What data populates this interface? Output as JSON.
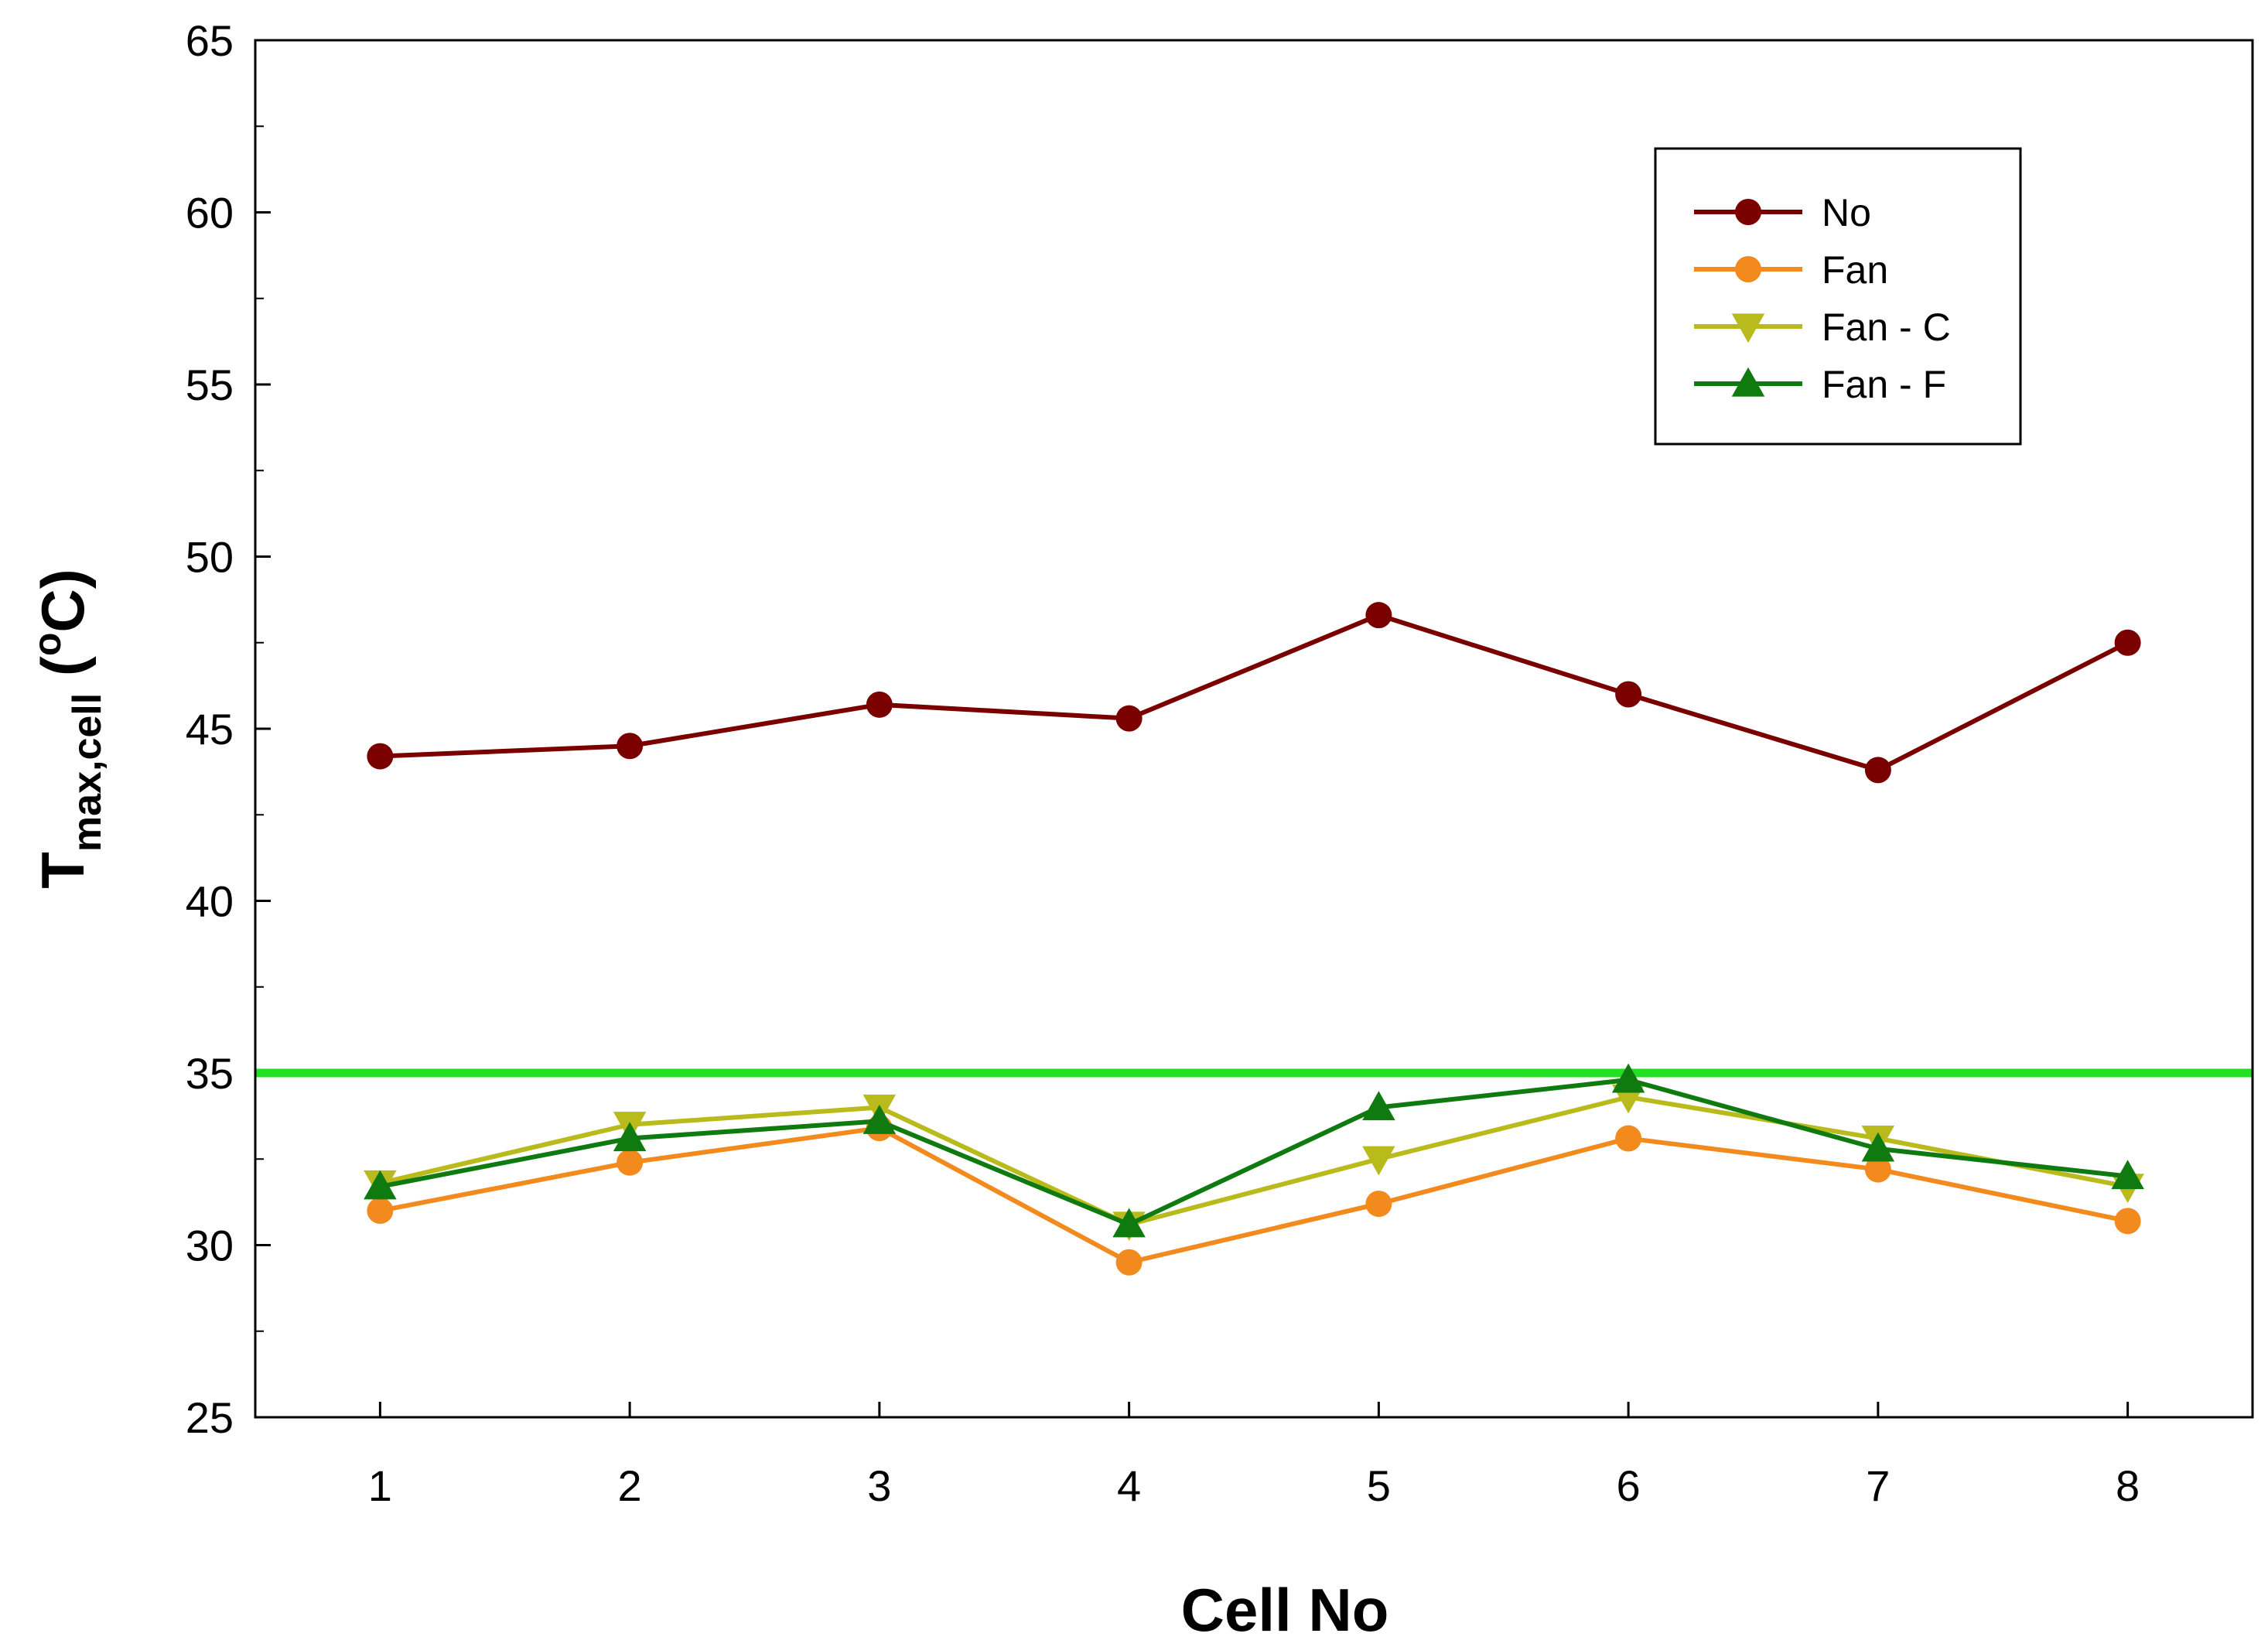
{
  "chart_data": {
    "type": "line",
    "title": "",
    "xlabel": "Cell No",
    "ylabel": {
      "base": "T",
      "subscript": "max,cell",
      "unit_open": " (",
      "unit_sup": "o",
      "unit_close": "C)"
    },
    "categories": [
      1,
      2,
      3,
      4,
      5,
      6,
      7,
      8
    ],
    "x_tick_labels": [
      "1",
      "2",
      "3",
      "4",
      "5",
      "6",
      "7",
      "8"
    ],
    "xlim": [
      0.5,
      8.5
    ],
    "ylim": [
      25,
      65
    ],
    "y_ticks": [
      25,
      30,
      35,
      40,
      45,
      50,
      55,
      60,
      65
    ],
    "y_tick_labels": [
      "25",
      "30",
      "35",
      "40",
      "45",
      "50",
      "55",
      "60",
      "65"
    ],
    "y_minor_ticks": [
      27.5,
      32.5,
      37.5,
      42.5,
      47.5,
      52.5,
      57.5,
      62.5
    ],
    "grid": false,
    "legend_position": "top-right",
    "reference_line": {
      "y": 35,
      "color": "#22e022"
    },
    "series": [
      {
        "name": "No",
        "color": "#7a0000",
        "marker": "circle",
        "values": [
          44.2,
          44.5,
          45.7,
          45.3,
          48.3,
          46.0,
          43.8,
          47.5
        ]
      },
      {
        "name": "Fan",
        "color": "#f28a1e",
        "marker": "circle",
        "values": [
          31.0,
          32.4,
          33.4,
          29.5,
          31.2,
          33.1,
          32.2,
          30.7
        ]
      },
      {
        "name": "Fan - C",
        "color": "#b9bb1c",
        "marker": "triangle-down",
        "values": [
          31.8,
          33.5,
          34.0,
          30.6,
          32.5,
          34.3,
          33.1,
          31.7
        ]
      },
      {
        "name": "Fan - F",
        "color": "#0f7a0f",
        "marker": "triangle-up",
        "values": [
          31.7,
          33.1,
          33.6,
          30.6,
          34.0,
          34.8,
          32.8,
          32.0
        ]
      }
    ]
  }
}
